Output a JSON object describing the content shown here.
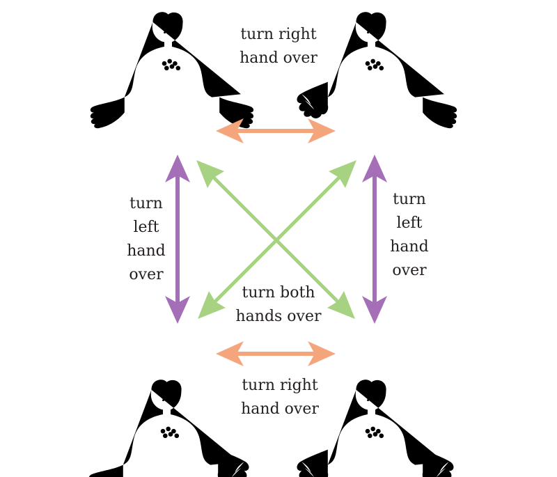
{
  "labels": {
    "top_center": [
      "turn right",
      "hand over"
    ],
    "left_side": [
      "turn",
      "left",
      "hand",
      "over"
    ],
    "right_side": [
      "turn",
      "left",
      "hand",
      "over"
    ],
    "center_bottom": [
      "turn both",
      "hands over"
    ],
    "bottom_center": [
      "turn right",
      "hand over"
    ]
  },
  "figures": {
    "top_left": {
      "left_hand": "down",
      "right_hand": "down"
    },
    "top_right": {
      "left_hand": "up",
      "right_hand": "down"
    },
    "bottom_left": {
      "left_hand": "down",
      "right_hand": "up"
    },
    "bottom_right": {
      "left_hand": "up",
      "right_hand": "up"
    }
  },
  "colors": {
    "horizontal_arrows": "#f5a57b",
    "vertical_arrows": "#a56fb8",
    "diagonal_arrows": "#a6d282",
    "text": "#231f20",
    "line_art": "#1a1a1a"
  }
}
